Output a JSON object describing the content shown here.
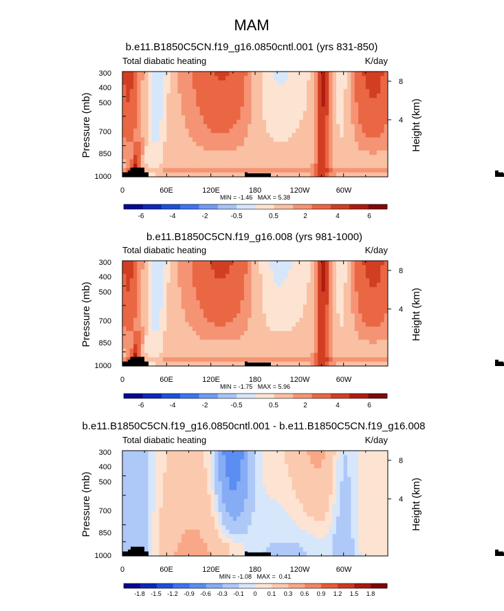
{
  "figure": {
    "main_title": "MAM"
  },
  "colors": {
    "cmap_main": [
      "#08088e",
      "#0d27b8",
      "#1d4fdb",
      "#3d74ef",
      "#6f9cf5",
      "#a7c4f7",
      "#d6e6fb",
      "#fde3d2",
      "#f9c0a3",
      "#f59474",
      "#ea6744",
      "#d23e22",
      "#ad1c10",
      "#7d0909"
    ],
    "cmap_diff": [
      "#08088e",
      "#0d27b8",
      "#1d4fdb",
      "#3d74ef",
      "#5b8df3",
      "#85acf5",
      "#aec9f8",
      "#d6e6fb",
      "#fde3d2",
      "#fbc9ae",
      "#f8a886",
      "#f28461",
      "#e55b39",
      "#cc3a20",
      "#a9190f",
      "#7d0909"
    ],
    "terrain": "#000000"
  },
  "chart_data": [
    {
      "type": "contour",
      "title": "b.e11.B1850C5CN.f19_g16.0850cntl.001 (yrs 831-850)",
      "left_label": "Total diabatic heating",
      "right_label": "K/day",
      "ylabel": "Pressure (mb)",
      "ylabel_right": "Height (km)",
      "yticks": [
        "300",
        "400",
        "500",
        "700",
        "850",
        "1000"
      ],
      "yticks_right": [
        "8",
        "4"
      ],
      "xticks": [
        "0",
        "60E",
        "120E",
        "180",
        "120W",
        "60W"
      ],
      "xlim": [
        0,
        360
      ],
      "stats": "MIN = -1.46   MAX = 5.38",
      "colorbar_labels": [
        "-6",
        "-4",
        "-2",
        "-0.5",
        "0.5",
        "2",
        "4",
        "6"
      ],
      "levels": [
        -6,
        -5,
        -4,
        -3,
        -2,
        -1,
        -0.5,
        0,
        0.5,
        1,
        2,
        3,
        4,
        5,
        6
      ]
    },
    {
      "type": "contour",
      "title": "b.e11.B1850C5CN.f19_g16.008 (yrs 981-1000)",
      "left_label": "Total diabatic heating",
      "right_label": "K/day",
      "ylabel": "Pressure (mb)",
      "ylabel_right": "Height (km)",
      "yticks": [
        "300",
        "400",
        "500",
        "700",
        "850",
        "1000"
      ],
      "yticks_right": [
        "8",
        "4"
      ],
      "xticks": [
        "0",
        "60E",
        "120E",
        "180",
        "120W",
        "60W"
      ],
      "xlim": [
        0,
        360
      ],
      "stats": "MIN = -1.75   MAX = 5.96",
      "colorbar_labels": [
        "-6",
        "-4",
        "-2",
        "-0.5",
        "0.5",
        "2",
        "4",
        "6"
      ],
      "levels": [
        -6,
        -5,
        -4,
        -3,
        -2,
        -1,
        -0.5,
        0,
        0.5,
        1,
        2,
        3,
        4,
        5,
        6
      ]
    },
    {
      "type": "contour",
      "title": "b.e11.B1850C5CN.f19_g16.0850cntl.001 - b.e11.B1850C5CN.f19_g16.008",
      "left_label": "Total diabatic heating",
      "right_label": "K/day",
      "ylabel": "Pressure (mb)",
      "ylabel_right": "Height (km)",
      "yticks": [
        "300",
        "400",
        "500",
        "700",
        "850",
        "1000"
      ],
      "yticks_right": [
        "8",
        "4"
      ],
      "xticks": [
        "0",
        "60E",
        "120E",
        "180",
        "120W",
        "60W"
      ],
      "xlim": [
        0,
        360
      ],
      "stats": "MIN = -1.08   MAX =  0.41",
      "colorbar_labels": [
        "-1.8",
        "-1.5",
        "-1.2",
        "-0.9",
        "-0.6",
        "-0.3",
        "-0.1",
        "0",
        "0.1",
        "0.3",
        "0.6",
        "0.9",
        "1.2",
        "1.5",
        "1.8"
      ]
    }
  ]
}
